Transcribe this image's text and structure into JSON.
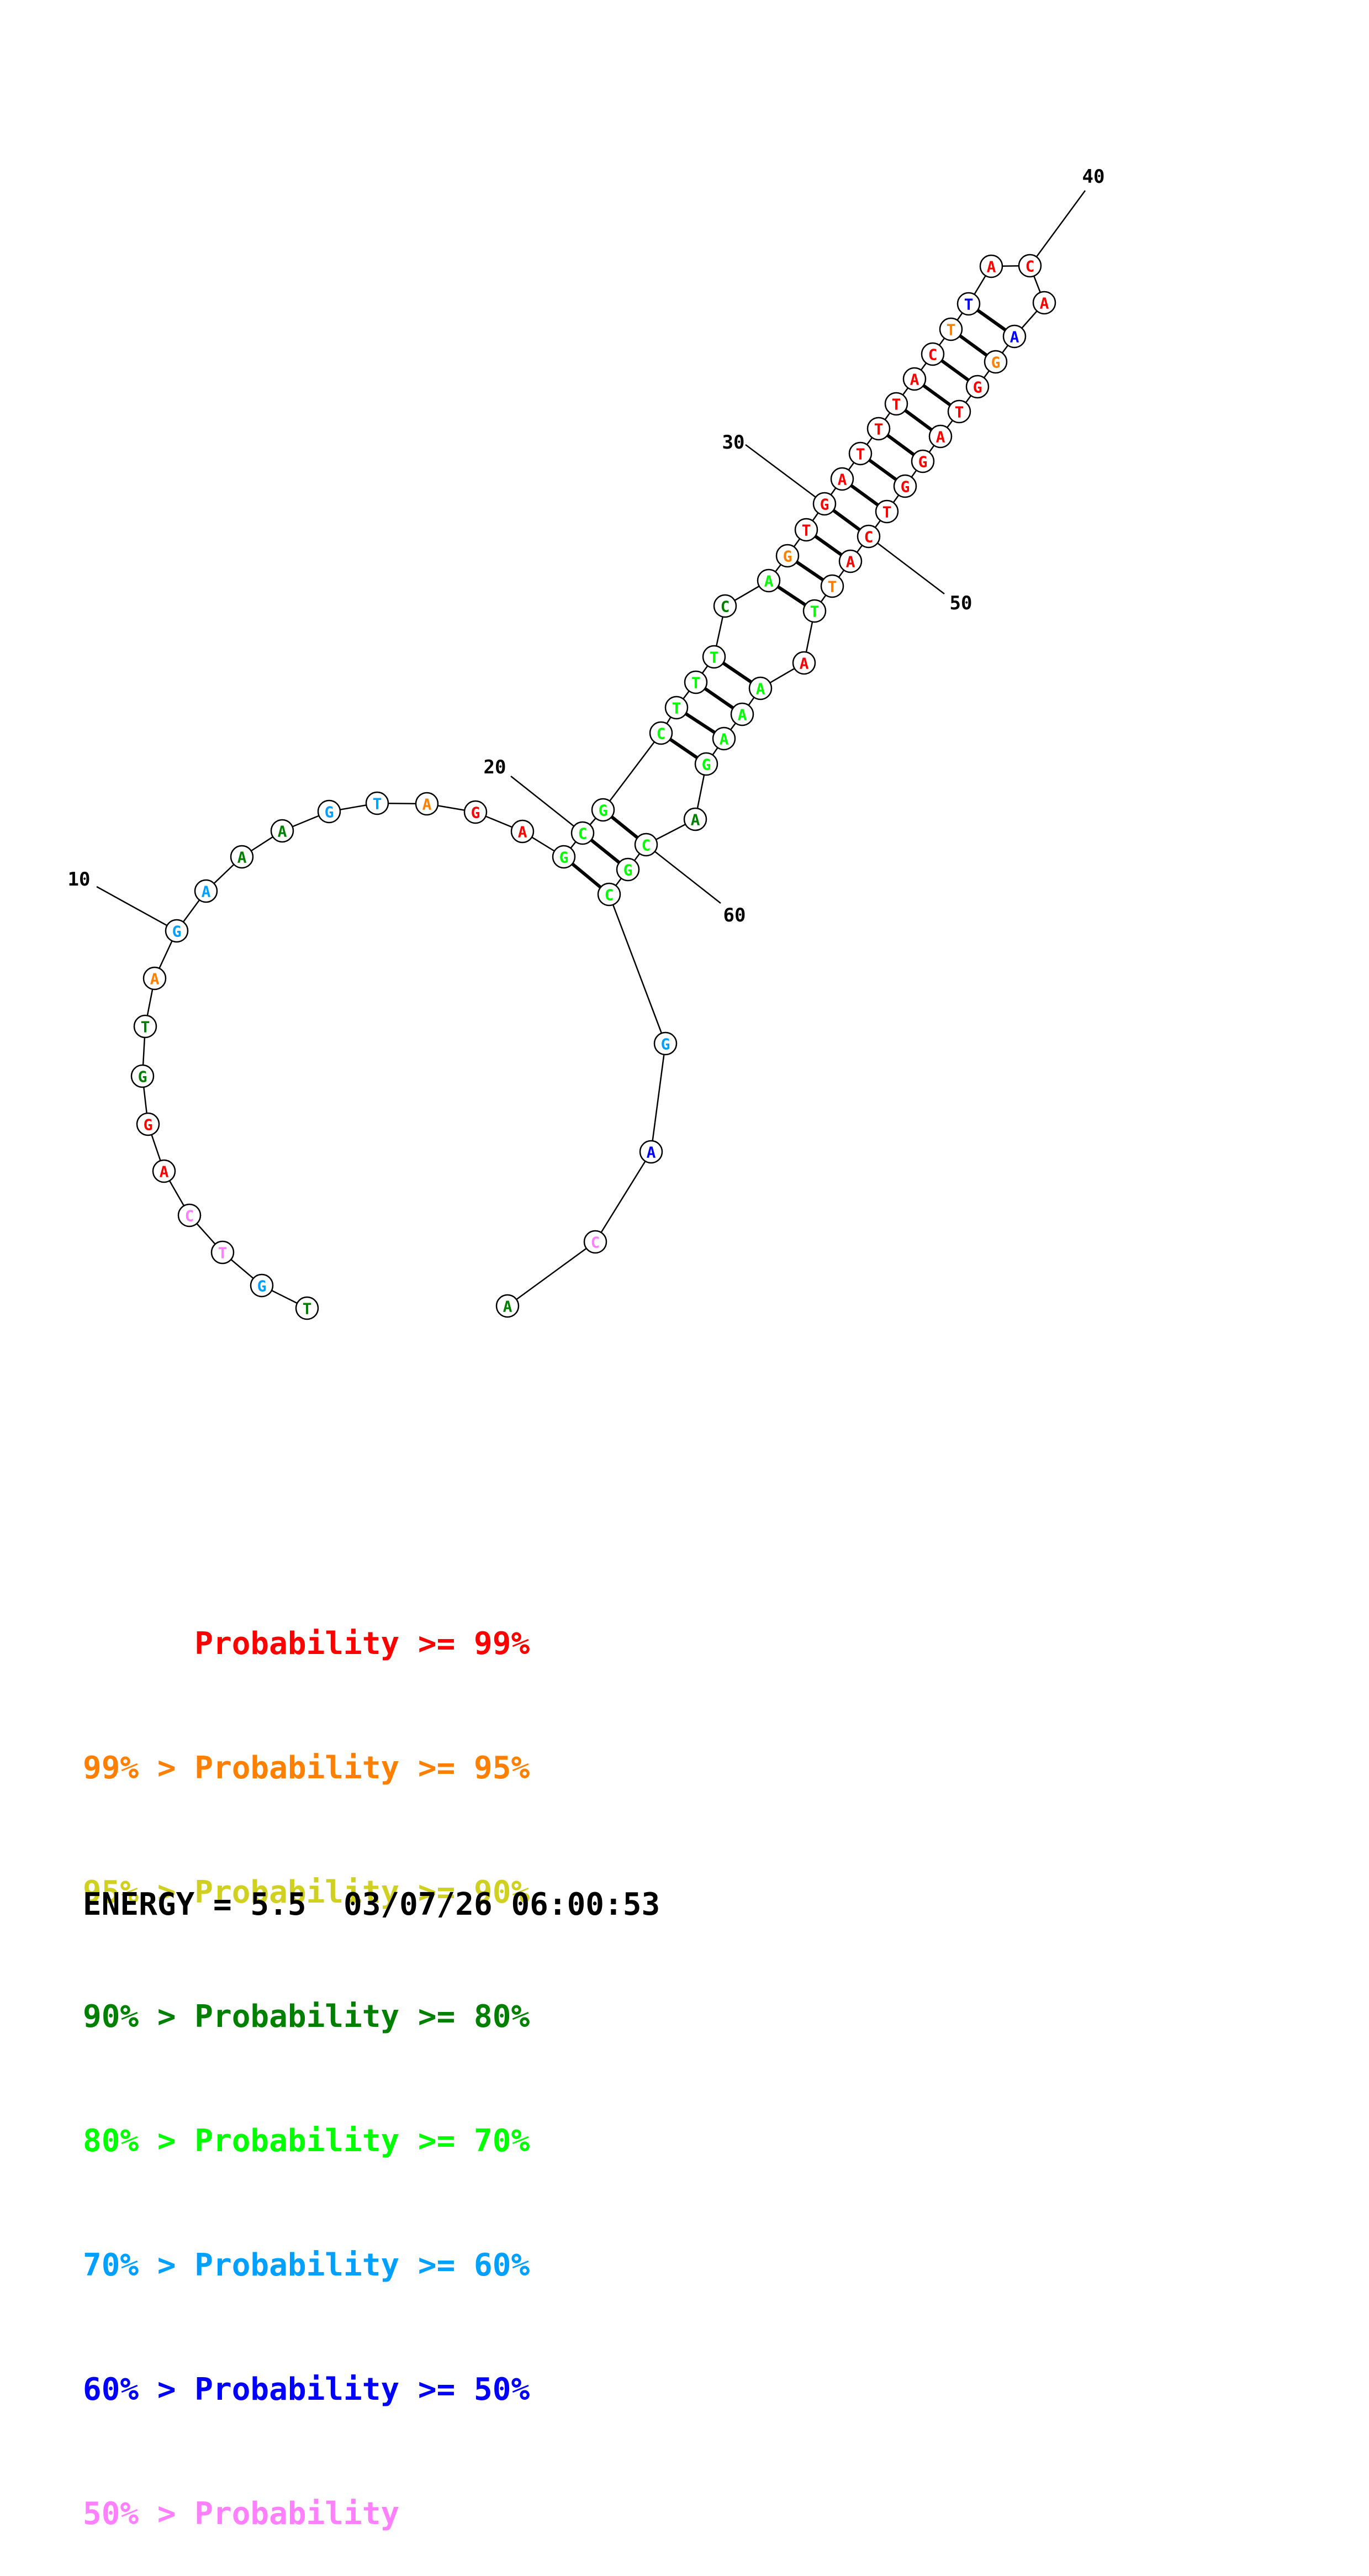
{
  "colors": {
    "c99": "#ff0000",
    "c95": "#ff8000",
    "c90": "#d0d020",
    "c80": "#008000",
    "c70": "#00ff00",
    "c60": "#00a0ff",
    "c50": "#0000ff",
    "clow": "#ff80ff"
  },
  "sequence": [
    {
      "n": 1,
      "b": "T",
      "c": "c80"
    },
    {
      "n": 2,
      "b": "G",
      "c": "c60"
    },
    {
      "n": 3,
      "b": "T",
      "c": "clow"
    },
    {
      "n": 4,
      "b": "C",
      "c": "clow"
    },
    {
      "n": 5,
      "b": "A",
      "c": "c99"
    },
    {
      "n": 6,
      "b": "G",
      "c": "c99"
    },
    {
      "n": 7,
      "b": "G",
      "c": "c80"
    },
    {
      "n": 8,
      "b": "T",
      "c": "c80"
    },
    {
      "n": 9,
      "b": "A",
      "c": "c95"
    },
    {
      "n": 10,
      "b": "G",
      "c": "c60"
    },
    {
      "n": 11,
      "b": "A",
      "c": "c60"
    },
    {
      "n": 12,
      "b": "A",
      "c": "c80"
    },
    {
      "n": 13,
      "b": "A",
      "c": "c80"
    },
    {
      "n": 14,
      "b": "G",
      "c": "c60"
    },
    {
      "n": 15,
      "b": "T",
      "c": "c60"
    },
    {
      "n": 16,
      "b": "A",
      "c": "c95"
    },
    {
      "n": 17,
      "b": "G",
      "c": "c99"
    },
    {
      "n": 18,
      "b": "A",
      "c": "c99"
    },
    {
      "n": 19,
      "b": "G",
      "c": "c70"
    },
    {
      "n": 20,
      "b": "C",
      "c": "c70"
    },
    {
      "n": 21,
      "b": "G",
      "c": "c70"
    },
    {
      "n": 22,
      "b": "C",
      "c": "c70"
    },
    {
      "n": 23,
      "b": "T",
      "c": "c70"
    },
    {
      "n": 24,
      "b": "T",
      "c": "c70"
    },
    {
      "n": 25,
      "b": "T",
      "c": "c70"
    },
    {
      "n": 26,
      "b": "C",
      "c": "c80"
    },
    {
      "n": 27,
      "b": "A",
      "c": "c70"
    },
    {
      "n": 28,
      "b": "G",
      "c": "c95"
    },
    {
      "n": 29,
      "b": "T",
      "c": "c99"
    },
    {
      "n": 30,
      "b": "G",
      "c": "c99"
    },
    {
      "n": 31,
      "b": "A",
      "c": "c99"
    },
    {
      "n": 32,
      "b": "T",
      "c": "c99"
    },
    {
      "n": 33,
      "b": "T",
      "c": "c99"
    },
    {
      "n": 34,
      "b": "T",
      "c": "c99"
    },
    {
      "n": 35,
      "b": "A",
      "c": "c99"
    },
    {
      "n": 36,
      "b": "C",
      "c": "c99"
    },
    {
      "n": 37,
      "b": "T",
      "c": "c95"
    },
    {
      "n": 38,
      "b": "T",
      "c": "c50"
    },
    {
      "n": 39,
      "b": "A",
      "c": "c99"
    },
    {
      "n": 40,
      "b": "C",
      "c": "c99"
    },
    {
      "n": 41,
      "b": "A",
      "c": "c99"
    },
    {
      "n": 42,
      "b": "A",
      "c": "c50"
    },
    {
      "n": 43,
      "b": "G",
      "c": "c95"
    },
    {
      "n": 44,
      "b": "G",
      "c": "c99"
    },
    {
      "n": 45,
      "b": "T",
      "c": "c99"
    },
    {
      "n": 46,
      "b": "A",
      "c": "c99"
    },
    {
      "n": 47,
      "b": "G",
      "c": "c99"
    },
    {
      "n": 48,
      "b": "G",
      "c": "c99"
    },
    {
      "n": 49,
      "b": "T",
      "c": "c99"
    },
    {
      "n": 50,
      "b": "C",
      "c": "c99"
    },
    {
      "n": 51,
      "b": "A",
      "c": "c99"
    },
    {
      "n": 52,
      "b": "T",
      "c": "c95"
    },
    {
      "n": 53,
      "b": "T",
      "c": "c70"
    },
    {
      "n": 54,
      "b": "A",
      "c": "c99"
    },
    {
      "n": 55,
      "b": "A",
      "c": "c70"
    },
    {
      "n": 56,
      "b": "A",
      "c": "c70"
    },
    {
      "n": 57,
      "b": "A",
      "c": "c70"
    },
    {
      "n": 58,
      "b": "G",
      "c": "c70"
    },
    {
      "n": 59,
      "b": "A",
      "c": "c80"
    },
    {
      "n": 60,
      "b": "C",
      "c": "c70"
    },
    {
      "n": 61,
      "b": "G",
      "c": "c70"
    },
    {
      "n": 62,
      "b": "C",
      "c": "c70"
    },
    {
      "n": 63,
      "b": "G",
      "c": "c60"
    },
    {
      "n": 64,
      "b": "A",
      "c": "c50"
    },
    {
      "n": 65,
      "b": "C",
      "c": "clow"
    },
    {
      "n": 66,
      "b": "A",
      "c": "c80"
    }
  ],
  "pairs": [
    [
      19,
      62
    ],
    [
      20,
      61
    ],
    [
      21,
      60
    ],
    [
      22,
      58
    ],
    [
      23,
      57
    ],
    [
      24,
      56
    ],
    [
      25,
      55
    ],
    [
      27,
      53
    ],
    [
      28,
      52
    ],
    [
      29,
      51
    ],
    [
      30,
      50
    ],
    [
      31,
      49
    ],
    [
      32,
      48
    ],
    [
      33,
      47
    ],
    [
      34,
      46
    ],
    [
      35,
      45
    ],
    [
      36,
      44
    ],
    [
      37,
      43
    ],
    [
      38,
      42
    ]
  ],
  "tick_labels": [
    {
      "n": 10,
      "text": "10"
    },
    {
      "n": 20,
      "text": "20"
    },
    {
      "n": 30,
      "text": "30"
    },
    {
      "n": 40,
      "text": "40"
    },
    {
      "n": 50,
      "text": "50"
    },
    {
      "n": 60,
      "text": "60"
    }
  ],
  "legend": [
    {
      "text": "      Probability >= 99%",
      "color": "c99"
    },
    {
      "text": "99% > Probability >= 95%",
      "color": "c95"
    },
    {
      "text": "95% > Probability >= 90%",
      "color": "c90"
    },
    {
      "text": "90% > Probability >= 80%",
      "color": "c80"
    },
    {
      "text": "80% > Probability >= 70%",
      "color": "c70"
    },
    {
      "text": "70% > Probability >= 60%",
      "color": "c60"
    },
    {
      "text": "60% > Probability >= 50%",
      "color": "c50"
    },
    {
      "text": "50% > Probability",
      "color": "clow"
    }
  ],
  "footer": {
    "energy": "ENERGY = 5.5  03/07/26 06:00:53"
  }
}
